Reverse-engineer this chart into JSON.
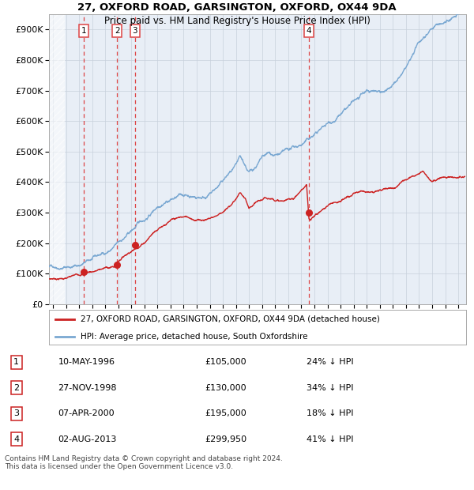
{
  "title1": "27, OXFORD ROAD, GARSINGTON, OXFORD, OX44 9DA",
  "title2": "Price paid vs. HM Land Registry's House Price Index (HPI)",
  "ylim": [
    0,
    950000
  ],
  "yticks": [
    0,
    100000,
    200000,
    300000,
    400000,
    500000,
    600000,
    700000,
    800000,
    900000
  ],
  "ytick_labels": [
    "£0",
    "£100K",
    "£200K",
    "£300K",
    "£400K",
    "£500K",
    "£600K",
    "£700K",
    "£800K",
    "£900K"
  ],
  "xlim_start": 1993.7,
  "xlim_end": 2025.6,
  "sale_dates": [
    1996.36,
    1998.9,
    2000.27,
    2013.58
  ],
  "sale_prices": [
    105000,
    130000,
    195000,
    299950
  ],
  "sale_labels": [
    "1",
    "2",
    "3",
    "4"
  ],
  "hpi_color": "#7aa8d2",
  "sale_color": "#cc2222",
  "dot_color": "#cc2222",
  "vline_color": "#dd4444",
  "grid_color": "#c8d0dc",
  "bg_color": "#e8eef6",
  "legend_label_sale": "27, OXFORD ROAD, GARSINGTON, OXFORD, OX44 9DA (detached house)",
  "legend_label_hpi": "HPI: Average price, detached house, South Oxfordshire",
  "table_rows": [
    {
      "num": "1",
      "date": "10-MAY-1996",
      "price": "£105,000",
      "pct": "24% ↓ HPI"
    },
    {
      "num": "2",
      "date": "27-NOV-1998",
      "price": "£130,000",
      "pct": "34% ↓ HPI"
    },
    {
      "num": "3",
      "date": "07-APR-2000",
      "price": "£195,000",
      "pct": "18% ↓ HPI"
    },
    {
      "num": "4",
      "date": "02-AUG-2013",
      "price": "£299,950",
      "pct": "41% ↓ HPI"
    }
  ],
  "footer": "Contains HM Land Registry data © Crown copyright and database right 2024.\nThis data is licensed under the Open Government Licence v3.0."
}
